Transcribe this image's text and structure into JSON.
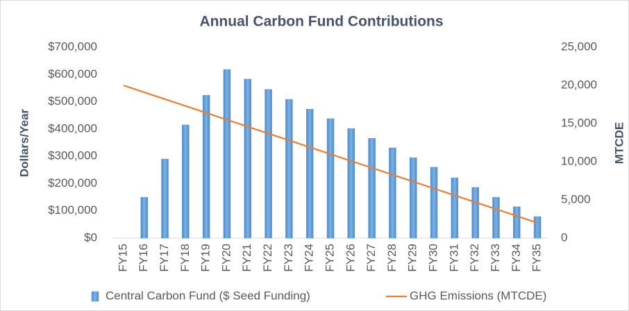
{
  "chart_data": {
    "type": "bar",
    "title": "Annual Carbon Fund Contributions",
    "y_label": "Dollars/Year",
    "y2_label": "MTCDE",
    "categories": [
      "FY15",
      "FY16",
      "FY17",
      "FY18",
      "FY19",
      "FY20",
      "FY21",
      "FY22",
      "FY23",
      "FY24",
      "FY25",
      "FY26",
      "FY27",
      "FY28",
      "FY29",
      "FY30",
      "FY31",
      "FY32",
      "FY33",
      "FY34",
      "FY35"
    ],
    "series": [
      {
        "name": "Central Carbon Fund ($ Seed Funding)",
        "type": "bar",
        "color": "#5b9bd5",
        "values": [
          0,
          150000,
          290000,
          415000,
          524000,
          618000,
          583000,
          545000,
          509000,
          473000,
          438000,
          402000,
          366000,
          331000,
          295000,
          260000,
          221000,
          186000,
          150000,
          115000,
          79000
        ]
      },
      {
        "name": "GHG Emissions (MTCDE)",
        "type": "line",
        "color": "#ed7d31",
        "axis": "y2",
        "values": [
          20000,
          19100,
          18200,
          17300,
          16400,
          15500,
          14600,
          13700,
          12800,
          11900,
          11000,
          10100,
          9200,
          8300,
          7400,
          6500,
          5600,
          4700,
          3800,
          2900,
          2000
        ]
      }
    ],
    "ylim": [
      0,
      700000
    ],
    "yticks": [
      {
        "value": 0,
        "label": "$0"
      },
      {
        "value": 100000,
        "label": "$100,000"
      },
      {
        "value": 200000,
        "label": "$200,000"
      },
      {
        "value": 300000,
        "label": "$300,000"
      },
      {
        "value": 400000,
        "label": "$400,000"
      },
      {
        "value": 500000,
        "label": "$500,000"
      },
      {
        "value": 600000,
        "label": "$600,000"
      },
      {
        "value": 700000,
        "label": "$700,000"
      }
    ],
    "y2lim": [
      0,
      25000
    ],
    "y2ticks": [
      0,
      {
        "value": 5000,
        "label": "5,000"
      },
      {
        "value": 10000,
        "label": "10,000"
      },
      {
        "value": 15000,
        "label": "15,000"
      },
      {
        "value": 20000,
        "label": "20,000"
      },
      {
        "value": 25000,
        "label": "25,000"
      }
    ],
    "grid": false,
    "legend": "bottom"
  }
}
